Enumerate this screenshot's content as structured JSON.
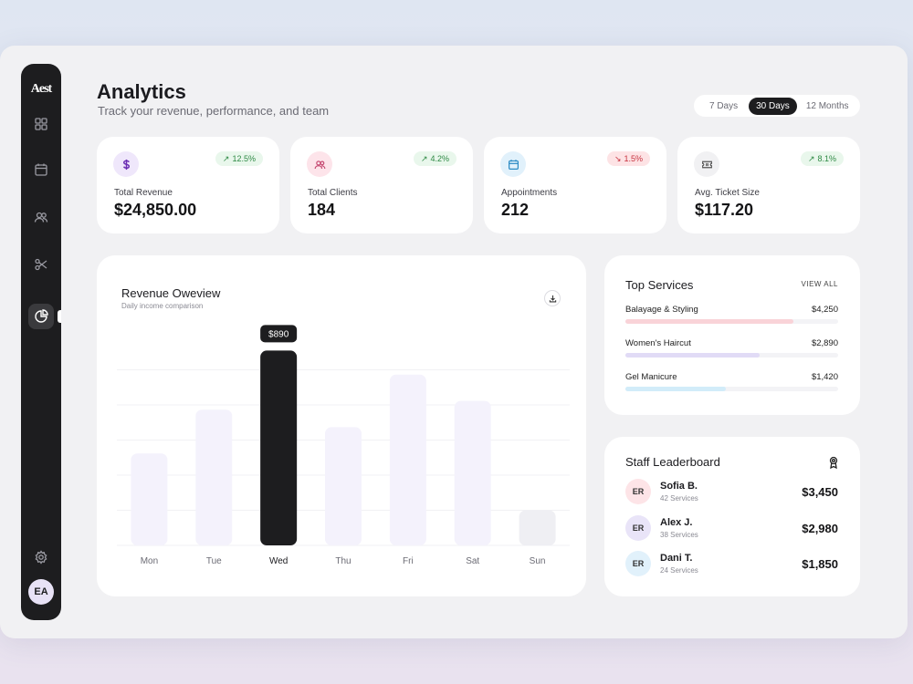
{
  "app": {
    "logo": "Aest"
  },
  "sidebar": {
    "items": [
      {
        "name": "dashboard",
        "icon": "grid-icon"
      },
      {
        "name": "calendar",
        "icon": "calendar-icon"
      },
      {
        "name": "clients",
        "icon": "users-icon"
      },
      {
        "name": "services",
        "icon": "scissors-icon"
      },
      {
        "name": "analytics",
        "icon": "pie-chart-icon",
        "active": true
      }
    ],
    "settings_icon": "gear-icon",
    "user_initials": "EA"
  },
  "header": {
    "title": "Analytics",
    "subtitle": "Track your revenue, performance, and team"
  },
  "range": {
    "options": [
      "7 Days",
      "30 Days",
      "12 Months"
    ],
    "selected": "30 Days"
  },
  "stats": [
    {
      "label": "Total Revenue",
      "value": "$24,850.00",
      "change": "12.5%",
      "trend": "up",
      "icon": "dollar-icon",
      "icon_bg": "#efe7fb",
      "icon_color": "#6b2fb3"
    },
    {
      "label": "Total Clients",
      "value": "184",
      "change": "4.2%",
      "trend": "up",
      "icon": "users-icon",
      "icon_bg": "#fde4ea",
      "icon_color": "#c74d74"
    },
    {
      "label": "Appointments",
      "value": "212",
      "change": "1.5%",
      "trend": "down",
      "icon": "calendar-icon",
      "icon_bg": "#e1f1fb",
      "icon_color": "#2a8ac4"
    },
    {
      "label": "Avg. Ticket Size",
      "value": "$117.20",
      "change": "8.1%",
      "trend": "up",
      "icon": "ticket-icon",
      "icon_bg": "#f1f1f3",
      "icon_color": "#555"
    }
  ],
  "revenue_chart": {
    "title": "Revenue Oweview",
    "subtitle": "Daily income comparison",
    "download_icon": "download-icon"
  },
  "chart_data": {
    "type": "bar",
    "title": "Revenue Oweview",
    "subtitle": "Daily income comparison",
    "categories": [
      "Mon",
      "Tue",
      "Wed",
      "Thu",
      "Fri",
      "Sat",
      "Sun"
    ],
    "values": [
      420,
      620,
      890,
      540,
      780,
      660,
      160
    ],
    "highlighted": "Wed",
    "highlight_label": "$890",
    "ylim": [
      0,
      1000
    ],
    "grid": true,
    "colors": {
      "bar": "#f4f2fc",
      "highlight": "#1d1d1f",
      "weekend_last": "#efeff3"
    }
  },
  "top_services": {
    "title": "Top Services",
    "view_all": "VIEW ALL",
    "items": [
      {
        "name": "Balayage & Styling",
        "amount": "$4,250",
        "share": 0.79,
        "color": "#f9d3d8"
      },
      {
        "name": "Women's Haircut",
        "amount": "$2,890",
        "share": 0.63,
        "color": "#e1dbf6"
      },
      {
        "name": "Gel Manicure",
        "amount": "$1,420",
        "share": 0.47,
        "color": "#d2ecf9"
      }
    ]
  },
  "staff": {
    "title": "Staff Leaderboard",
    "icon": "award-icon",
    "members": [
      {
        "initials": "ER",
        "name": "Sofia B.",
        "services": "42 Services",
        "amount": "$3,450",
        "avatar_bg": "#fde4e7"
      },
      {
        "initials": "ER",
        "name": "Alex J.",
        "services": "38 Services",
        "amount": "$2,980",
        "avatar_bg": "#e9e4f8"
      },
      {
        "initials": "ER",
        "name": "Dani T.",
        "services": "24 Services",
        "amount": "$1,850",
        "avatar_bg": "#e1f1fb"
      }
    ]
  }
}
